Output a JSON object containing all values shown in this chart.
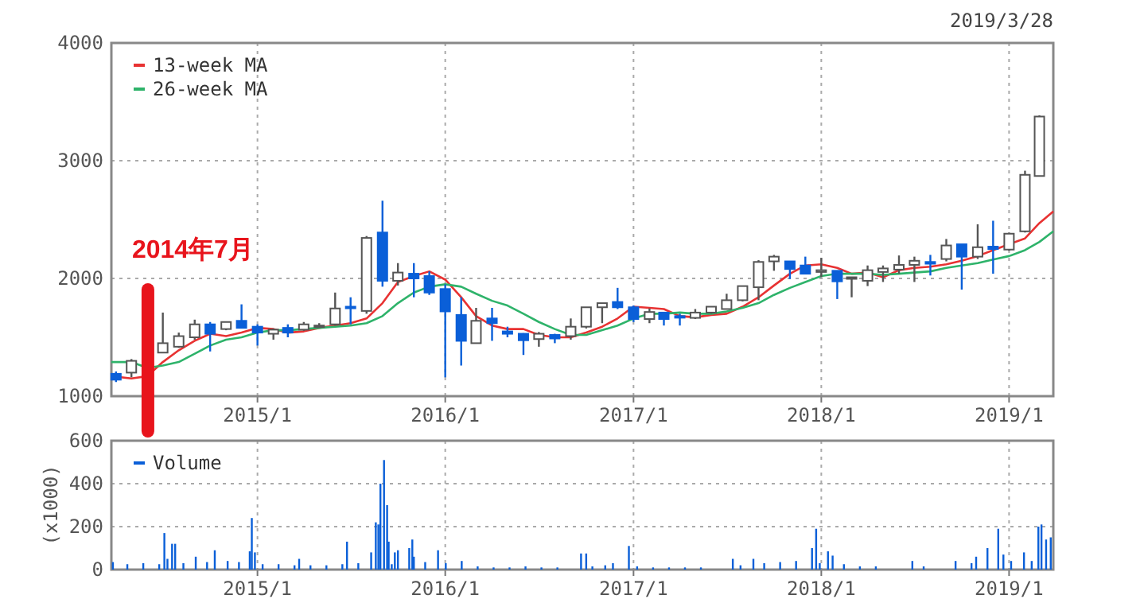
{
  "chart_data": [
    {
      "type": "candlestick",
      "xlim": [
        "2014-03-23",
        "2019-03-28"
      ],
      "ylim": [
        1000,
        4000
      ],
      "yticks": [
        1000,
        2000,
        3000,
        4000
      ],
      "xticks": [
        {
          "value": "2015-01",
          "label": "2015/1"
        },
        {
          "value": "2016-01",
          "label": "2016/1"
        },
        {
          "value": "2017-01",
          "label": "2017/1"
        },
        {
          "value": "2018-01",
          "label": "2018/1"
        },
        {
          "value": "2019-01",
          "label": "2019/1"
        }
      ],
      "grid": true,
      "legend": "top left",
      "annotations": [
        "2019/3/28"
      ],
      "ref_lines": [
        {
          "axis": "x",
          "value": "2014-06-02",
          "label": "2014年7月",
          "color": "#e8141c"
        }
      ],
      "x": [
        "2014-04",
        "2014-05",
        "2014-07",
        "2014-08",
        "2014-09",
        "2014-10",
        "2014-11",
        "2014-12",
        "2015-01",
        "2015-02",
        "2015-03",
        "2015-04",
        "2015-05",
        "2015-06",
        "2015-07",
        "2015-08",
        "2015-09",
        "2015-10",
        "2015-11",
        "2015-12",
        "2016-01",
        "2016-02",
        "2016-03",
        "2016-04",
        "2016-05",
        "2016-06",
        "2016-07",
        "2016-08",
        "2016-09",
        "2016-10",
        "2016-11",
        "2016-12",
        "2017-01",
        "2017-02",
        "2017-03",
        "2017-04",
        "2017-05",
        "2017-06",
        "2017-07",
        "2017-08",
        "2017-09",
        "2017-10",
        "2017-11",
        "2017-12",
        "2018-01",
        "2018-02",
        "2018-03",
        "2018-04",
        "2018-05",
        "2018-06",
        "2018-07",
        "2018-08",
        "2018-09",
        "2018-10",
        "2018-11",
        "2018-12",
        "2019-01",
        "2019-02",
        "2019-03"
      ],
      "ohlc": [
        [
          1190,
          1210,
          1120,
          1140
        ],
        [
          1200,
          1315,
          1160,
          1300
        ],
        [
          1370,
          1710,
          1370,
          1450
        ],
        [
          1420,
          1540,
          1410,
          1510
        ],
        [
          1500,
          1650,
          1480,
          1610
        ],
        [
          1610,
          1630,
          1380,
          1530
        ],
        [
          1570,
          1630,
          1560,
          1630
        ],
        [
          1640,
          1780,
          1580,
          1580
        ],
        [
          1590,
          1610,
          1430,
          1540
        ],
        [
          1530,
          1575,
          1480,
          1565
        ],
        [
          1580,
          1610,
          1500,
          1540
        ],
        [
          1565,
          1630,
          1555,
          1610
        ],
        [
          1590,
          1620,
          1590,
          1600
        ],
        [
          1610,
          1880,
          1600,
          1745
        ],
        [
          1760,
          1840,
          1610,
          1750
        ],
        [
          1724,
          2360,
          1700,
          2344
        ],
        [
          2390,
          2660,
          1930,
          1980
        ],
        [
          1980,
          2130,
          1940,
          2050
        ],
        [
          2040,
          2130,
          1840,
          2000
        ],
        [
          2020,
          2060,
          1860,
          1880
        ],
        [
          1910,
          1950,
          1160,
          1720
        ],
        [
          1690,
          1840,
          1260,
          1470
        ],
        [
          1450,
          1750,
          1450,
          1640
        ],
        [
          1660,
          1750,
          1470,
          1620
        ],
        [
          1550,
          1590,
          1500,
          1530
        ],
        [
          1530,
          1535,
          1350,
          1475
        ],
        [
          1485,
          1545,
          1420,
          1530
        ],
        [
          1520,
          1530,
          1450,
          1490
        ],
        [
          1510,
          1660,
          1480,
          1590
        ],
        [
          1590,
          1755,
          1575,
          1755
        ],
        [
          1755,
          1790,
          1620,
          1790
        ],
        [
          1800,
          1920,
          1740,
          1755
        ],
        [
          1755,
          1770,
          1630,
          1655
        ],
        [
          1655,
          1745,
          1620,
          1715
        ],
        [
          1710,
          1710,
          1600,
          1655
        ],
        [
          1680,
          1700,
          1600,
          1670
        ],
        [
          1665,
          1740,
          1655,
          1710
        ],
        [
          1710,
          1760,
          1700,
          1760
        ],
        [
          1740,
          1870,
          1740,
          1815
        ],
        [
          1815,
          1935,
          1805,
          1935
        ],
        [
          1925,
          2155,
          1815,
          2140
        ],
        [
          2145,
          2200,
          2065,
          2185
        ],
        [
          2145,
          2145,
          1995,
          2080
        ],
        [
          2110,
          2185,
          2040,
          2040
        ],
        [
          2055,
          2175,
          2010,
          2070
        ],
        [
          2065,
          2065,
          1825,
          1975
        ],
        [
          2000,
          2010,
          1840,
          2010
        ],
        [
          1980,
          2110,
          1935,
          2070
        ],
        [
          2055,
          2110,
          1970,
          2085
        ],
        [
          2075,
          2195,
          2040,
          2115
        ],
        [
          2115,
          2185,
          1970,
          2150
        ],
        [
          2140,
          2200,
          2025,
          2125
        ],
        [
          2165,
          2335,
          2145,
          2280
        ],
        [
          2290,
          2290,
          1905,
          2185
        ],
        [
          2185,
          2460,
          2165,
          2265
        ],
        [
          2270,
          2490,
          2040,
          2250
        ],
        [
          2245,
          2390,
          2235,
          2380
        ],
        [
          2400,
          2915,
          2390,
          2880
        ],
        [
          2870,
          3385,
          2870,
          3375
        ]
      ],
      "series": [
        {
          "name": "13-week MA",
          "type": "line",
          "color": "#e83232",
          "x": [
            "2014-03-23",
            "2014-05",
            "2014-06",
            "2014-07",
            "2014-08",
            "2014-09",
            "2014-10",
            "2014-11",
            "2014-12",
            "2015-01",
            "2015-02",
            "2015-03",
            "2015-04",
            "2015-05",
            "2015-06",
            "2015-07",
            "2015-08",
            "2015-09",
            "2015-10",
            "2015-11",
            "2015-12",
            "2016-01",
            "2016-02",
            "2016-03",
            "2016-04",
            "2016-05",
            "2016-06",
            "2016-07",
            "2016-08",
            "2016-09",
            "2016-10",
            "2016-11",
            "2016-12",
            "2017-01",
            "2017-02",
            "2017-03",
            "2017-04",
            "2017-05",
            "2017-06",
            "2017-07",
            "2017-08",
            "2017-09",
            "2017-10",
            "2017-11",
            "2017-12",
            "2018-01",
            "2018-02",
            "2018-03",
            "2018-04",
            "2018-05",
            "2018-06",
            "2018-07",
            "2018-08",
            "2018-09",
            "2018-10",
            "2018-11",
            "2018-12",
            "2019-01",
            "2019-02",
            "2019-03",
            "2019-03-28"
          ],
          "values": [
            1170,
            1150,
            1170,
            1290,
            1390,
            1470,
            1530,
            1510,
            1540,
            1580,
            1570,
            1540,
            1550,
            1580,
            1600,
            1620,
            1660,
            1790,
            1970,
            2020,
            2060,
            1990,
            1840,
            1680,
            1600,
            1570,
            1570,
            1520,
            1500,
            1500,
            1540,
            1590,
            1660,
            1760,
            1750,
            1740,
            1680,
            1670,
            1690,
            1700,
            1760,
            1840,
            1940,
            2040,
            2110,
            2120,
            2090,
            2040,
            2050,
            2010,
            2070,
            2090,
            2100,
            2120,
            2150,
            2190,
            2240,
            2290,
            2340,
            2470,
            2570
          ]
        },
        {
          "name": "26-week MA",
          "type": "line",
          "color": "#2eb36a",
          "x": [
            "2014-03-23",
            "2014-05",
            "2014-06",
            "2014-07",
            "2014-08",
            "2014-09",
            "2014-10",
            "2014-11",
            "2014-12",
            "2015-01",
            "2015-02",
            "2015-03",
            "2015-04",
            "2015-05",
            "2015-06",
            "2015-07",
            "2015-08",
            "2015-09",
            "2015-10",
            "2015-11",
            "2015-12",
            "2016-01",
            "2016-02",
            "2016-03",
            "2016-04",
            "2016-05",
            "2016-06",
            "2016-07",
            "2016-08",
            "2016-09",
            "2016-10",
            "2016-11",
            "2016-12",
            "2017-01",
            "2017-02",
            "2017-03",
            "2017-04",
            "2017-05",
            "2017-06",
            "2017-07",
            "2017-08",
            "2017-09",
            "2017-10",
            "2017-11",
            "2017-12",
            "2018-01",
            "2018-02",
            "2018-03",
            "2018-04",
            "2018-05",
            "2018-06",
            "2018-07",
            "2018-08",
            "2018-09",
            "2018-10",
            "2018-11",
            "2018-12",
            "2019-01",
            "2019-02",
            "2019-03",
            "2019-03-28"
          ],
          "values": [
            1290,
            1290,
            1240,
            1260,
            1290,
            1360,
            1430,
            1480,
            1500,
            1540,
            1560,
            1560,
            1570,
            1580,
            1590,
            1600,
            1620,
            1680,
            1790,
            1880,
            1930,
            1950,
            1930,
            1870,
            1810,
            1770,
            1700,
            1630,
            1570,
            1520,
            1520,
            1560,
            1600,
            1660,
            1700,
            1700,
            1710,
            1700,
            1700,
            1720,
            1750,
            1790,
            1860,
            1920,
            1970,
            2020,
            2040,
            2040,
            2040,
            2030,
            2040,
            2050,
            2060,
            2090,
            2110,
            2130,
            2160,
            2190,
            2240,
            2310,
            2400
          ]
        }
      ]
    },
    {
      "type": "bar",
      "xlim": [
        "2014-03-23",
        "2019-03-28"
      ],
      "ylim": [
        0,
        600
      ],
      "yticks": [
        0,
        200,
        400,
        600
      ],
      "ylabel": "(x1000)",
      "xticks": [
        {
          "value": "2015-01",
          "label": "2015/1"
        },
        {
          "value": "2016-01",
          "label": "2016/1"
        },
        {
          "value": "2017-01",
          "label": "2017/1"
        },
        {
          "value": "2018-01",
          "label": "2018/1"
        },
        {
          "value": "2019-01",
          "label": "2019/1"
        }
      ],
      "grid": true,
      "legend": "top left",
      "x": [
        "2014-03-26",
        "2014-04-23",
        "2014-05-24",
        "2014-06-24",
        "2014-07-04",
        "2014-07-10",
        "2014-07-19",
        "2014-07-25",
        "2014-08-10",
        "2014-09-03",
        "2014-09-25",
        "2014-10-10",
        "2014-11-04",
        "2014-11-26",
        "2014-12-17",
        "2014-12-21",
        "2014-12-27",
        "2015-01-11",
        "2015-02-11",
        "2015-03-14",
        "2015-03-23",
        "2015-04-14",
        "2015-05-15",
        "2015-06-15",
        "2015-06-24",
        "2015-07-16",
        "2015-08-10",
        "2015-08-19",
        "2015-08-24",
        "2015-08-28",
        "2015-09-04",
        "2015-09-10",
        "2015-09-13",
        "2015-09-19",
        "2015-09-25",
        "2015-10-01",
        "2015-10-23",
        "2015-10-29",
        "2015-11-01",
        "2015-11-23",
        "2015-12-18",
        "2016-01-02",
        "2016-02-02",
        "2016-03-04",
        "2016-04-04",
        "2016-05-05",
        "2016-06-05",
        "2016-07-06",
        "2016-08-06",
        "2016-09-21",
        "2016-10-01",
        "2016-10-13",
        "2016-11-07",
        "2016-11-22",
        "2016-12-23",
        "2017-01-08",
        "2017-02-08",
        "2017-03-11",
        "2017-04-11",
        "2017-05-12",
        "2017-07-13",
        "2017-07-28",
        "2017-08-22",
        "2017-09-12",
        "2017-10-13",
        "2017-11-13",
        "2017-12-14",
        "2017-12-22",
        "2017-12-29",
        "2018-01-14",
        "2018-01-23",
        "2018-02-14",
        "2018-03-17",
        "2018-04-17",
        "2018-06-27",
        "2018-07-19",
        "2018-09-19",
        "2018-10-20",
        "2018-10-29",
        "2018-11-20",
        "2018-12-11",
        "2018-12-21",
        "2019-01-05",
        "2019-01-30",
        "2019-02-14",
        "2019-02-27",
        "2019-03-05",
        "2019-03-14",
        "2019-03-23"
      ],
      "series": [
        {
          "name": "Volume",
          "color": "#0a5fd8",
          "values": [
            35,
            25,
            30,
            25,
            170,
            50,
            120,
            120,
            30,
            60,
            35,
            90,
            40,
            35,
            85,
            240,
            80,
            25,
            25,
            20,
            50,
            20,
            20,
            25,
            130,
            30,
            80,
            220,
            210,
            400,
            510,
            300,
            130,
            25,
            80,
            90,
            100,
            140,
            60,
            35,
            90,
            30,
            40,
            15,
            10,
            10,
            15,
            10,
            10,
            75,
            75,
            15,
            20,
            30,
            110,
            15,
            10,
            10,
            10,
            10,
            50,
            20,
            50,
            30,
            35,
            40,
            100,
            190,
            30,
            85,
            65,
            25,
            15,
            15,
            40,
            15,
            40,
            30,
            60,
            100,
            190,
            70,
            40,
            80,
            40,
            200,
            210,
            140,
            150
          ]
        }
      ]
    }
  ]
}
